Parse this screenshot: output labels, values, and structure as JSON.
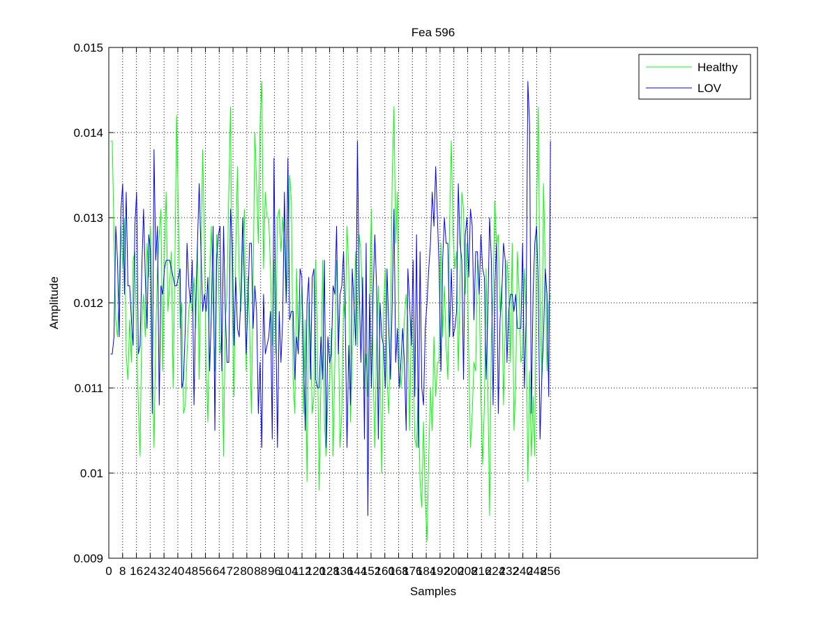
{
  "chart_data": {
    "type": "line",
    "title": "Fea 596",
    "xlabel": "Samples",
    "ylabel": "Amplitude",
    "xlim": [
      0,
      376
    ],
    "ylim": [
      0.009,
      0.015
    ],
    "grid": true,
    "legend_position": "top-right",
    "x_ticks": [
      0,
      8,
      16,
      24,
      32,
      40,
      48,
      56,
      64,
      72,
      80,
      88,
      96,
      104,
      112,
      120,
      128,
      136,
      144,
      152,
      160,
      168,
      176,
      184,
      192,
      200,
      208,
      216,
      224,
      232,
      240,
      248,
      256
    ],
    "x_tick_labels": [
      "0",
      "8",
      "16",
      "24",
      "32",
      "40",
      "48",
      "56",
      "64",
      "72",
      "80",
      "88",
      "96",
      "104",
      "112",
      "120",
      "128",
      "136",
      "144",
      "152",
      "160",
      "168",
      "176",
      "184",
      "192",
      "200",
      "208",
      "216",
      "224",
      "232",
      "240",
      "248",
      "256"
    ],
    "y_ticks": [
      0.009,
      0.01,
      0.011,
      0.012,
      0.013,
      0.014,
      0.015
    ],
    "y_tick_labels": [
      "0.009",
      "0.01",
      "0.011",
      "0.012",
      "0.013",
      "0.014",
      "0.015"
    ],
    "x_range": [
      1,
      256
    ],
    "series": [
      {
        "name": "Healthy",
        "color": "#00ff00",
        "values": [
          0.0139,
          0.0139,
          0.0128,
          0.0118,
          0.0116,
          0.0122,
          0.0129,
          0.0124,
          0.013,
          0.0114,
          0.0111,
          0.0118,
          0.0113,
          0.0125,
          0.0126,
          0.0116,
          0.0108,
          0.0102,
          0.0118,
          0.0121,
          0.0116,
          0.0127,
          0.0123,
          0.0129,
          0.0115,
          0.0103,
          0.0116,
          0.0124,
          0.0128,
          0.0131,
          0.0112,
          0.0126,
          0.0133,
          0.0119,
          0.0122,
          0.0126,
          0.011,
          0.0124,
          0.0142,
          0.0131,
          0.0117,
          0.012,
          0.0107,
          0.0108,
          0.0114,
          0.0119,
          0.0121,
          0.0119,
          0.0123,
          0.0117,
          0.0127,
          0.0111,
          0.0125,
          0.0138,
          0.0127,
          0.0112,
          0.0106,
          0.0123,
          0.0129,
          0.012,
          0.0112,
          0.0128,
          0.0124,
          0.0114,
          0.0116,
          0.0102,
          0.0118,
          0.0121,
          0.0133,
          0.0143,
          0.012,
          0.0109,
          0.0126,
          0.0136,
          0.0123,
          0.0119,
          0.0126,
          0.0131,
          0.0112,
          0.0123,
          0.0117,
          0.0107,
          0.0122,
          0.014,
          0.0134,
          0.0127,
          0.0141,
          0.0146,
          0.0124,
          0.0133,
          0.013,
          0.013,
          0.0124,
          0.0115,
          0.0125,
          0.0114,
          0.013,
          0.0131,
          0.0126,
          0.013,
          0.0127,
          0.012,
          0.0124,
          0.0135,
          0.0132,
          0.0111,
          0.0107,
          0.0124,
          0.0115,
          0.0118,
          0.0122,
          0.0107,
          0.0118,
          0.0099,
          0.012,
          0.0116,
          0.0107,
          0.0109,
          0.0125,
          0.0115,
          0.0098,
          0.0111,
          0.0125,
          0.0106,
          0.0102,
          0.0109,
          0.0111,
          0.0117,
          0.0102,
          0.0113,
          0.0125,
          0.0118,
          0.0103,
          0.0107,
          0.012,
          0.0118,
          0.0129,
          0.0124,
          0.0106,
          0.0113,
          0.0119,
          0.0126,
          0.0115,
          0.0128,
          0.0126,
          0.0119,
          0.011,
          0.0114,
          0.0109,
          0.012,
          0.0131,
          0.0112,
          0.0103,
          0.0115,
          0.0122,
          0.0113,
          0.01,
          0.0119,
          0.0124,
          0.0111,
          0.0107,
          0.0117,
          0.0135,
          0.0143,
          0.0127,
          0.0133,
          0.0114,
          0.011,
          0.0113,
          0.0118,
          0.0121,
          0.0118,
          0.0105,
          0.0118,
          0.0115,
          0.0104,
          0.0103,
          0.011,
          0.0099,
          0.0096,
          0.0106,
          0.0097,
          0.0092,
          0.0102,
          0.011,
          0.0105,
          0.0116,
          0.0109,
          0.0113,
          0.0113,
          0.0127,
          0.0116,
          0.0122,
          0.0115,
          0.0111,
          0.0129,
          0.0139,
          0.0128,
          0.0124,
          0.0126,
          0.0112,
          0.0122,
          0.0133,
          0.0131,
          0.0121,
          0.0127,
          0.0114,
          0.0103,
          0.0107,
          0.0113,
          0.0112,
          0.0125,
          0.0122,
          0.0109,
          0.0101,
          0.0108,
          0.0124,
          0.011,
          0.0095,
          0.0116,
          0.0121,
          0.0132,
          0.0127,
          0.0128,
          0.0119,
          0.0122,
          0.0108,
          0.0117,
          0.0125,
          0.0122,
          0.0113,
          0.0127,
          0.0105,
          0.011,
          0.0126,
          0.0121,
          0.0113,
          0.0114,
          0.0124,
          0.0119,
          0.0099,
          0.0112,
          0.0102,
          0.0109,
          0.0102,
          0.013,
          0.0143,
          0.012,
          0.0111,
          0.0134,
          0.0125,
          0.0112,
          0.012,
          0.0121
        ]
      },
      {
        "name": "LOV",
        "color": "#0000ff",
        "values": [
          0.0114,
          0.0114,
          0.0116,
          0.0129,
          0.0125,
          0.0116,
          0.0131,
          0.0134,
          0.0121,
          0.0133,
          0.0122,
          0.0122,
          0.0118,
          0.0115,
          0.0129,
          0.0133,
          0.0114,
          0.0115,
          0.0124,
          0.0131,
          0.0123,
          0.0117,
          0.0128,
          0.0126,
          0.0107,
          0.0138,
          0.0125,
          0.0129,
          0.0108,
          0.0122,
          0.0121,
          0.0124,
          0.0125,
          0.0125,
          0.0125,
          0.0124,
          0.0123,
          0.0122,
          0.0122,
          0.0123,
          0.0124,
          0.011,
          0.0111,
          0.0117,
          0.0127,
          0.0122,
          0.012,
          0.0125,
          0.0108,
          0.012,
          0.0127,
          0.0134,
          0.0126,
          0.0119,
          0.0121,
          0.0119,
          0.0123,
          0.0112,
          0.0119,
          0.0129,
          0.0105,
          0.0125,
          0.0128,
          0.0129,
          0.0112,
          0.0129,
          0.0119,
          0.0113,
          0.0113,
          0.0131,
          0.0127,
          0.0115,
          0.0123,
          0.0117,
          0.0116,
          0.0121,
          0.013,
          0.0122,
          0.0114,
          0.012,
          0.0127,
          0.0127,
          0.0117,
          0.0122,
          0.0119,
          0.0107,
          0.0113,
          0.0103,
          0.0121,
          0.0114,
          0.0115,
          0.0116,
          0.0119,
          0.0104,
          0.0137,
          0.0119,
          0.0103,
          0.0119,
          0.0113,
          0.0118,
          0.0133,
          0.012,
          0.0137,
          0.0118,
          0.0119,
          0.0119,
          0.0111,
          0.0116,
          0.0114,
          0.0124,
          0.0123,
          0.0114,
          0.0105,
          0.012,
          0.0123,
          0.0111,
          0.0123,
          0.0124,
          0.0111,
          0.011,
          0.011,
          0.0116,
          0.0111,
          0.0125,
          0.0103,
          0.0116,
          0.0113,
          0.0114,
          0.0122,
          0.0121,
          0.0129,
          0.0114,
          0.0121,
          0.0122,
          0.0126,
          0.0118,
          0.0103,
          0.0115,
          0.0108,
          0.0124,
          0.012,
          0.0115,
          0.0139,
          0.0122,
          0.0113,
          0.0123,
          0.0104,
          0.0127,
          0.0095,
          0.0121,
          0.011,
          0.0121,
          0.0128,
          0.0122,
          0.0104,
          0.012,
          0.0116,
          0.0115,
          0.011,
          0.0124,
          0.0117,
          0.0111,
          0.012,
          0.0131,
          0.0113,
          0.0117,
          0.011,
          0.0113,
          0.0117,
          0.0113,
          0.0105,
          0.0124,
          0.012,
          0.0115,
          0.0125,
          0.0109,
          0.0128,
          0.0103,
          0.0126,
          0.011,
          0.0108,
          0.0117,
          0.012,
          0.0124,
          0.0127,
          0.0133,
          0.0129,
          0.0136,
          0.013,
          0.0124,
          0.0112,
          0.0125,
          0.013,
          0.0127,
          0.0127,
          0.0116,
          0.0124,
          0.0116,
          0.0117,
          0.0119,
          0.0134,
          0.0127,
          0.0125,
          0.0111,
          0.0128,
          0.013,
          0.0123,
          0.0131,
          0.0129,
          0.0118,
          0.0126,
          0.0126,
          0.0121,
          0.0128,
          0.0124,
          0.0123,
          0.0111,
          0.0119,
          0.013,
          0.0125,
          0.0108,
          0.0122,
          0.0127,
          0.0107,
          0.0118,
          0.0121,
          0.0127,
          0.0125,
          0.0113,
          0.0119,
          0.0121,
          0.0121,
          0.0119,
          0.0121,
          0.0117,
          0.0117,
          0.0117,
          0.0127,
          0.011,
          0.0118,
          0.0146,
          0.0141,
          0.0107,
          0.0121,
          0.0127,
          0.0129,
          0.0122,
          0.0104,
          0.0111,
          0.0116,
          0.0124,
          0.0121,
          0.0109,
          0.0139
        ]
      }
    ]
  }
}
